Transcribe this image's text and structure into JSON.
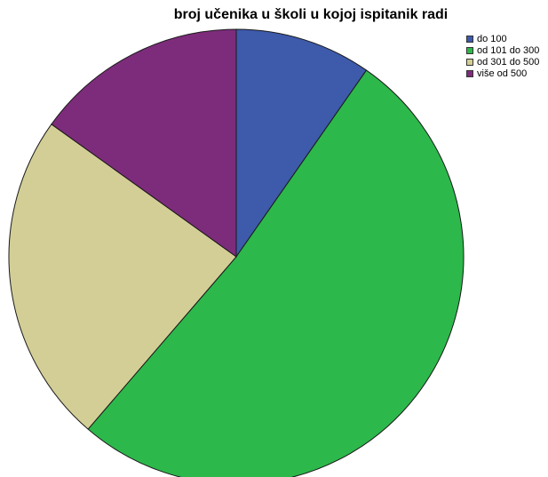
{
  "chart_data": {
    "type": "pie",
    "title": "broj učenika u školi u kojoj ispitanik radi",
    "start_angle_deg": 0,
    "direction": "clockwise",
    "legend_position": "top-right",
    "slices": [
      {
        "label": "do 100",
        "value": 9.7,
        "color": "#3d5aab"
      },
      {
        "label": "od 101 do 300",
        "value": 51.6,
        "color": "#2db84b"
      },
      {
        "label": "od 301 do 500",
        "value": 23.6,
        "color": "#d3ce96"
      },
      {
        "label": "više od 500",
        "value": 15.1,
        "color": "#7d2c7b"
      }
    ]
  }
}
